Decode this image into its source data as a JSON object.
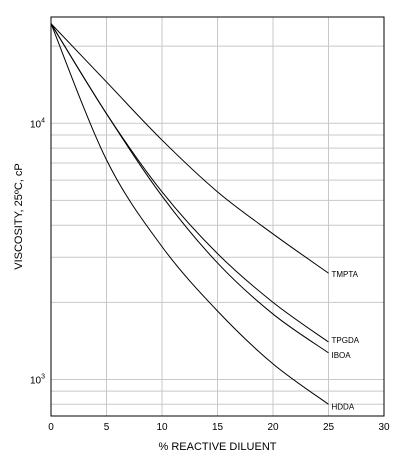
{
  "chart_data": {
    "type": "line",
    "title": "",
    "xlabel": "% REACTIVE DILUENT",
    "ylabel": "VISCOSITY, 25ºC, cP",
    "xlim": [
      0,
      30
    ],
    "ylim": [
      720,
      26000
    ],
    "yscale": "log",
    "xticks": [
      0,
      5,
      10,
      15,
      20,
      25,
      30
    ],
    "yticks": [
      {
        "base": "10",
        "exp": "3"
      },
      {
        "base": "10",
        "exp": "4"
      }
    ],
    "grid": true,
    "legend": "none",
    "series": [
      {
        "name": "TMPTA",
        "x": [
          0,
          5,
          10,
          15,
          20,
          25
        ],
        "y": [
          24500,
          14500,
          8600,
          5400,
          3700,
          2600
        ],
        "color": "#000000"
      },
      {
        "name": "TPGDA",
        "x": [
          0,
          5,
          10,
          15,
          20,
          25
        ],
        "y": [
          24500,
          10900,
          5400,
          3100,
          2000,
          1400
        ],
        "color": "#000000"
      },
      {
        "name": "IBOA",
        "x": [
          0,
          5,
          10,
          15,
          20,
          25
        ],
        "y": [
          24500,
          10900,
          5200,
          2850,
          1800,
          1270
        ],
        "color": "#000000"
      },
      {
        "name": "HDDA",
        "x": [
          0,
          5,
          10,
          15,
          20,
          25
        ],
        "y": [
          24500,
          7200,
          3300,
          1850,
          1150,
          800
        ],
        "color": "#000000"
      }
    ]
  }
}
